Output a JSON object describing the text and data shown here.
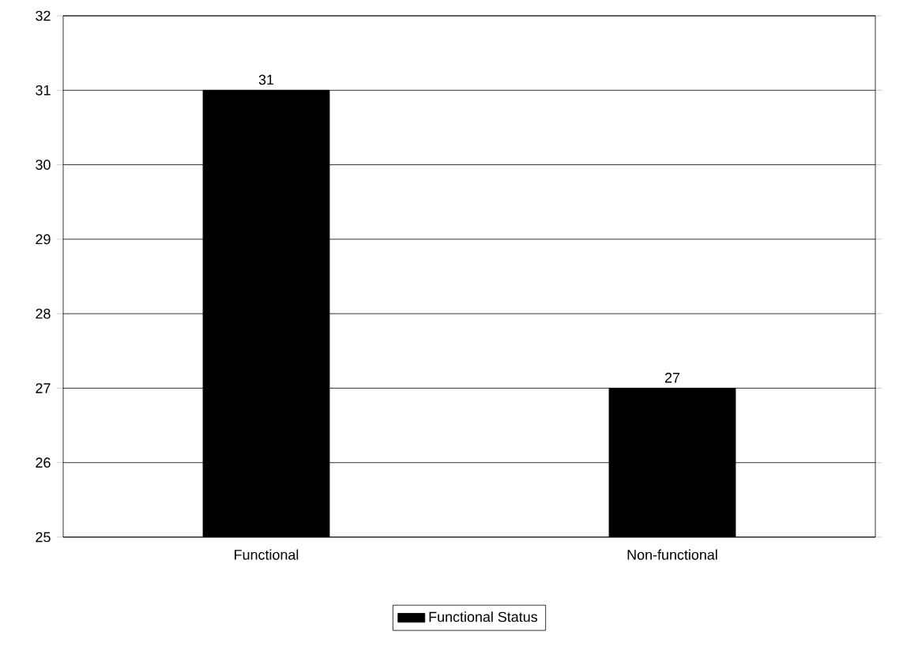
{
  "chart_data": {
    "type": "bar",
    "categories": [
      "Functional",
      "Non-functional"
    ],
    "series": [
      {
        "name": "Functional Status",
        "color": "#000000",
        "values": [
          31,
          27
        ]
      }
    ],
    "ylim": [
      25,
      32
    ],
    "yticks": [
      25,
      26,
      27,
      28,
      29,
      30,
      31,
      32
    ],
    "grid": "y",
    "legend": "bottom",
    "data_labels": true
  }
}
